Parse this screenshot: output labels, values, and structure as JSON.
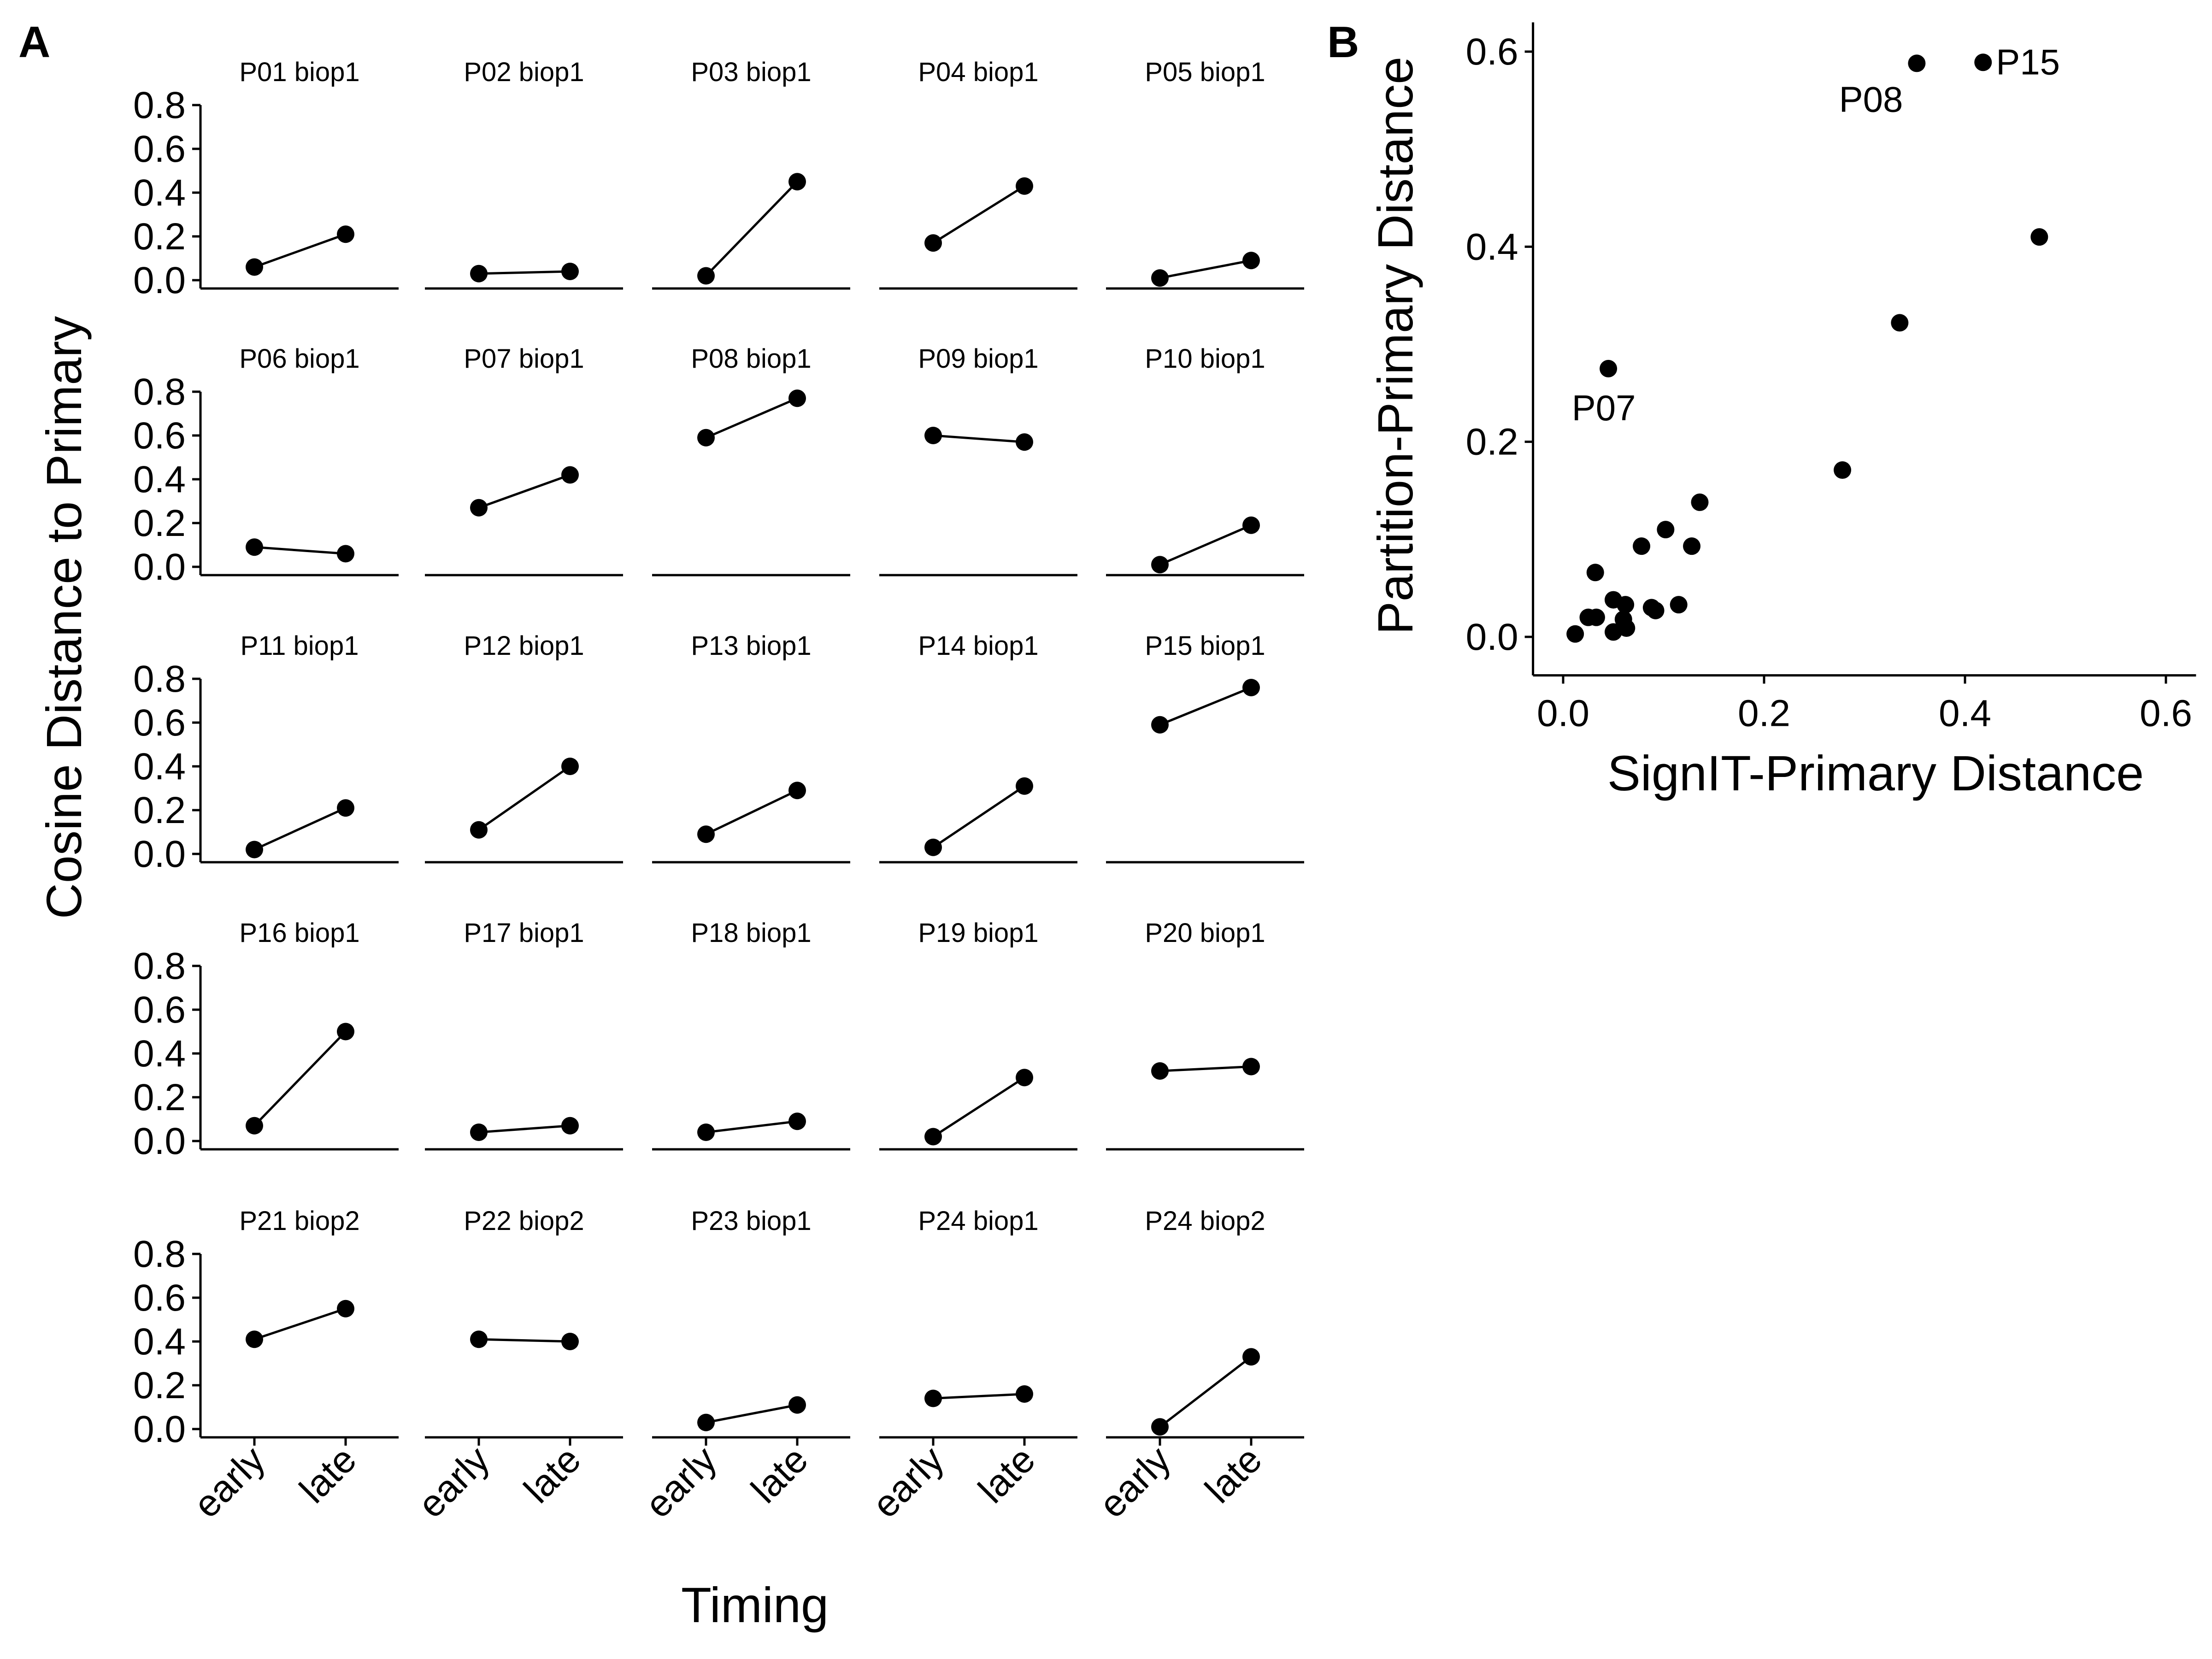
{
  "panel_a": {
    "letter": "A",
    "xlabel": "Timing",
    "ylabel": "Cosine Distance to Primary"
  },
  "panel_b": {
    "letter": "B",
    "xlabel": "SignIT-Primary Distance",
    "ylabel": "Partition-Primary Distance"
  },
  "chart_data": [
    {
      "type": "line",
      "title": "",
      "xlabel": "Timing",
      "ylabel": "Cosine Distance to Primary",
      "categories": [
        "early",
        "late"
      ],
      "ylim": [
        0,
        0.8
      ],
      "yticks": [
        0.0,
        0.2,
        0.4,
        0.6,
        0.8
      ],
      "ytick_labels": [
        "0.0",
        "0.2",
        "0.4",
        "0.6",
        "0.8"
      ],
      "grid": false,
      "facets": [
        {
          "label": "P01 biop1",
          "values": [
            0.06,
            0.21
          ]
        },
        {
          "label": "P02 biop1",
          "values": [
            0.03,
            0.04
          ]
        },
        {
          "label": "P03 biop1",
          "values": [
            0.02,
            0.45
          ]
        },
        {
          "label": "P04 biop1",
          "values": [
            0.17,
            0.43
          ]
        },
        {
          "label": "P05 biop1",
          "values": [
            0.01,
            0.09
          ]
        },
        {
          "label": "P06 biop1",
          "values": [
            0.09,
            0.06
          ]
        },
        {
          "label": "P07 biop1",
          "values": [
            0.27,
            0.42
          ]
        },
        {
          "label": "P08 biop1",
          "values": [
            0.59,
            0.77
          ]
        },
        {
          "label": "P09 biop1",
          "values": [
            0.6,
            0.57
          ]
        },
        {
          "label": "P10 biop1",
          "values": [
            0.01,
            0.19
          ]
        },
        {
          "label": "P11 biop1",
          "values": [
            0.02,
            0.21
          ]
        },
        {
          "label": "P12 biop1",
          "values": [
            0.11,
            0.4
          ]
        },
        {
          "label": "P13 biop1",
          "values": [
            0.09,
            0.29
          ]
        },
        {
          "label": "P14 biop1",
          "values": [
            0.03,
            0.31
          ]
        },
        {
          "label": "P15 biop1",
          "values": [
            0.59,
            0.76
          ]
        },
        {
          "label": "P16 biop1",
          "values": [
            0.07,
            0.5
          ]
        },
        {
          "label": "P17 biop1",
          "values": [
            0.04,
            0.07
          ]
        },
        {
          "label": "P18 biop1",
          "values": [
            0.04,
            0.09
          ]
        },
        {
          "label": "P19 biop1",
          "values": [
            0.02,
            0.29
          ]
        },
        {
          "label": "P20 biop1",
          "values": [
            0.32,
            0.34
          ]
        },
        {
          "label": "P21 biop2",
          "values": [
            0.41,
            0.55
          ]
        },
        {
          "label": "P22 biop2",
          "values": [
            0.41,
            0.4
          ]
        },
        {
          "label": "P23 biop1",
          "values": [
            0.03,
            0.11
          ]
        },
        {
          "label": "P24 biop1",
          "values": [
            0.14,
            0.16
          ]
        },
        {
          "label": "P24 biop2",
          "values": [
            0.01,
            0.33
          ]
        }
      ]
    },
    {
      "type": "scatter",
      "title": "",
      "xlabel": "SignIT-Primary Distance",
      "ylabel": "Partition-Primary Distance",
      "xlim": [
        -0.03,
        0.63
      ],
      "ylim": [
        -0.03,
        0.63
      ],
      "xticks": [
        0.0,
        0.2,
        0.4,
        0.6
      ],
      "xtick_labels": [
        "0.0",
        "0.2",
        "0.4",
        "0.6"
      ],
      "yticks": [
        0.0,
        0.2,
        0.4,
        0.6
      ],
      "ytick_labels": [
        "0.0",
        "0.2",
        "0.4",
        "0.6"
      ],
      "grid": false,
      "points": [
        {
          "x": 0.012,
          "y": 0.003
        },
        {
          "x": 0.025,
          "y": 0.02
        },
        {
          "x": 0.033,
          "y": 0.02
        },
        {
          "x": 0.032,
          "y": 0.066
        },
        {
          "x": 0.045,
          "y": 0.275,
          "label": "P07"
        },
        {
          "x": 0.05,
          "y": 0.038
        },
        {
          "x": 0.05,
          "y": 0.005
        },
        {
          "x": 0.06,
          "y": 0.018
        },
        {
          "x": 0.062,
          "y": 0.033
        },
        {
          "x": 0.063,
          "y": 0.009
        },
        {
          "x": 0.078,
          "y": 0.093
        },
        {
          "x": 0.088,
          "y": 0.03
        },
        {
          "x": 0.092,
          "y": 0.027
        },
        {
          "x": 0.102,
          "y": 0.11
        },
        {
          "x": 0.115,
          "y": 0.033
        },
        {
          "x": 0.128,
          "y": 0.093
        },
        {
          "x": 0.136,
          "y": 0.138
        },
        {
          "x": 0.278,
          "y": 0.171
        },
        {
          "x": 0.335,
          "y": 0.322
        },
        {
          "x": 0.352,
          "y": 0.588,
          "label": "P08"
        },
        {
          "x": 0.418,
          "y": 0.589,
          "label": "P15"
        },
        {
          "x": 0.474,
          "y": 0.41
        }
      ]
    }
  ]
}
